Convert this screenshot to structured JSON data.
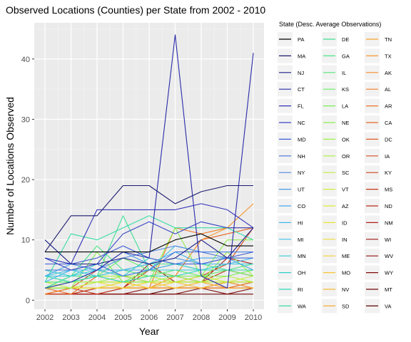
{
  "chart_data": {
    "type": "line",
    "title": "Observed Locations (Counties) per State from 2002 - 2010",
    "xlabel": "Year",
    "ylabel": "Number of Locations Observed",
    "legend_title": "State (Desc. Average Observations)",
    "legend_placement": "right",
    "grid": true,
    "xlim": [
      2002,
      2010
    ],
    "ylim": [
      0,
      45
    ],
    "x": [
      2002,
      2003,
      2004,
      2005,
      2006,
      2007,
      2008,
      2009,
      2010
    ],
    "x_ticks": [
      "2002",
      "2003",
      "2004",
      "2005",
      "2006",
      "2007",
      "2008",
      "2009",
      "2010"
    ],
    "y_ticks": [
      0,
      10,
      20,
      30,
      40
    ],
    "series": [
      {
        "name": "PA",
        "color": "#000000",
        "values": [
          8,
          8,
          8,
          8,
          8,
          10,
          11,
          9,
          9
        ]
      },
      {
        "name": "MA",
        "color": "#1a1a6e",
        "values": [
          8,
          14,
          14,
          19,
          19,
          16,
          18,
          19,
          19
        ]
      },
      {
        "name": "NJ",
        "color": "#1c1c8a",
        "values": [
          10,
          6,
          6,
          7,
          6,
          7,
          10,
          7,
          12
        ]
      },
      {
        "name": "CT",
        "color": "#2a2aa8",
        "values": [
          2,
          3,
          5,
          8,
          7,
          44,
          4,
          2,
          41
        ]
      },
      {
        "name": "FL",
        "color": "#3232b8",
        "values": [
          7,
          6,
          15,
          15,
          15,
          15,
          16,
          15,
          12
        ]
      },
      {
        "name": "NC",
        "color": "#3a45c4",
        "values": [
          7,
          5,
          6,
          11,
          13,
          11,
          13,
          12,
          12
        ]
      },
      {
        "name": "MD",
        "color": "#3d5ad4",
        "values": [
          6,
          6,
          7,
          9,
          7,
          6,
          6,
          7,
          8
        ]
      },
      {
        "name": "NH",
        "color": "#4a70dd",
        "values": [
          5,
          5,
          6,
          4,
          5,
          8,
          8,
          7,
          7
        ]
      },
      {
        "name": "NY",
        "color": "#5088e6",
        "values": [
          7,
          6,
          5,
          7,
          8,
          9,
          8,
          8,
          8
        ]
      },
      {
        "name": "UT",
        "color": "#4a9ae8",
        "values": [
          6,
          6,
          5,
          8,
          6,
          7,
          6,
          7,
          7
        ]
      },
      {
        "name": "CO",
        "color": "#45a8ee",
        "values": [
          4,
          6,
          5,
          5,
          5,
          6,
          7,
          7,
          5
        ]
      },
      {
        "name": "HI",
        "color": "#45b5ee",
        "values": [
          3,
          5,
          5,
          5,
          6,
          8,
          6,
          6,
          7
        ]
      },
      {
        "name": "MI",
        "color": "#3ec2e8",
        "values": [
          4,
          5,
          4,
          5,
          5,
          9,
          8,
          8,
          8
        ]
      },
      {
        "name": "MN",
        "color": "#35ccd8",
        "values": [
          4,
          4,
          5,
          4,
          5,
          5,
          5,
          6,
          6
        ]
      },
      {
        "name": "OH",
        "color": "#30d0c8",
        "values": [
          5,
          4,
          6,
          4,
          7,
          6,
          5,
          6,
          6
        ]
      },
      {
        "name": "RI",
        "color": "#32d6b8",
        "values": [
          4,
          3,
          4,
          3,
          4,
          4,
          5,
          5,
          5
        ]
      },
      {
        "name": "WA",
        "color": "#38dca6",
        "values": [
          3,
          11,
          10,
          12,
          14,
          12,
          12,
          12,
          10
        ]
      },
      {
        "name": "DE",
        "color": "#40e096",
        "values": [
          2,
          4,
          4,
          14,
          5,
          6,
          6,
          5,
          5
        ]
      },
      {
        "name": "GA",
        "color": "#4be585",
        "values": [
          2,
          4,
          9,
          5,
          6,
          6,
          5,
          5,
          6
        ]
      },
      {
        "name": "IL",
        "color": "#55e875",
        "values": [
          3,
          3,
          4,
          5,
          4,
          5,
          5,
          5,
          5
        ]
      },
      {
        "name": "KS",
        "color": "#65ec65",
        "values": [
          2,
          3,
          4,
          7,
          5,
          5,
          4,
          5,
          4
        ]
      },
      {
        "name": "LA",
        "color": "#78ee58",
        "values": [
          2,
          3,
          4,
          3,
          5,
          4,
          4,
          4,
          5
        ]
      },
      {
        "name": "NE",
        "color": "#8af04e",
        "values": [
          2,
          2,
          8,
          3,
          3,
          12,
          4,
          10,
          10
        ]
      },
      {
        "name": "OK",
        "color": "#9cf246",
        "values": [
          4,
          3,
          3,
          4,
          3,
          4,
          3,
          8,
          4
        ]
      },
      {
        "name": "OR",
        "color": "#aef03e",
        "values": [
          3,
          3,
          4,
          4,
          4,
          3,
          3,
          3,
          3
        ]
      },
      {
        "name": "SC",
        "color": "#bfee3a",
        "values": [
          3,
          2,
          3,
          3,
          4,
          3,
          3,
          4,
          3
        ]
      },
      {
        "name": "VT",
        "color": "#cfec38",
        "values": [
          2,
          3,
          3,
          3,
          3,
          3,
          4,
          3,
          4
        ]
      },
      {
        "name": "AZ",
        "color": "#ddea36",
        "values": [
          2,
          3,
          3,
          3,
          3,
          3,
          3,
          3,
          3
        ]
      },
      {
        "name": "ID",
        "color": "#e8e634",
        "values": [
          2,
          2,
          2,
          3,
          3,
          3,
          3,
          3,
          3
        ]
      },
      {
        "name": "IN",
        "color": "#f0de34",
        "values": [
          2,
          2,
          3,
          2,
          3,
          3,
          3,
          3,
          3
        ]
      },
      {
        "name": "ME",
        "color": "#f4d232",
        "values": [
          2,
          2,
          3,
          3,
          2,
          3,
          3,
          3,
          3
        ]
      },
      {
        "name": "MO",
        "color": "#f6c632",
        "values": [
          2,
          2,
          2,
          3,
          3,
          2,
          3,
          3,
          3
        ]
      },
      {
        "name": "NV",
        "color": "#f7ba32",
        "values": [
          2,
          2,
          2,
          2,
          3,
          3,
          2,
          3,
          3
        ]
      },
      {
        "name": "SD",
        "color": "#f8ae30",
        "values": [
          2,
          2,
          2,
          2,
          2,
          3,
          3,
          2,
          2
        ]
      },
      {
        "name": "TN",
        "color": "#f8a22e",
        "values": [
          2,
          2,
          2,
          3,
          2,
          2,
          2,
          3,
          2
        ]
      },
      {
        "name": "TX",
        "color": "#f8962c",
        "values": [
          2,
          2,
          2,
          2,
          2,
          4,
          10,
          12,
          16
        ]
      },
      {
        "name": "AK",
        "color": "#f68a2a",
        "values": [
          2,
          2,
          2,
          2,
          2,
          2,
          2,
          2,
          2
        ]
      },
      {
        "name": "AL",
        "color": "#f37e28",
        "values": [
          1,
          2,
          2,
          2,
          2,
          12,
          11,
          12,
          12
        ]
      },
      {
        "name": "AR",
        "color": "#ee7226",
        "values": [
          1,
          2,
          2,
          2,
          2,
          2,
          3,
          2,
          3
        ]
      },
      {
        "name": "CA",
        "color": "#e86624",
        "values": [
          2,
          1,
          4,
          3,
          2,
          4,
          10,
          11,
          12
        ]
      },
      {
        "name": "DC",
        "color": "#e05a22",
        "values": [
          1,
          2,
          2,
          2,
          2,
          2,
          2,
          2,
          2
        ]
      },
      {
        "name": "IA",
        "color": "#d84e20",
        "values": [
          2,
          2,
          5,
          4,
          3,
          3,
          4,
          6,
          12
        ]
      },
      {
        "name": "KY",
        "color": "#cf421e",
        "values": [
          1,
          1,
          2,
          2,
          2,
          2,
          2,
          2,
          3
        ]
      },
      {
        "name": "MS",
        "color": "#c5361c",
        "values": [
          1,
          2,
          1,
          2,
          5,
          4,
          3,
          5,
          4
        ]
      },
      {
        "name": "ND",
        "color": "#ba2b1a",
        "values": [
          1,
          1,
          2,
          2,
          2,
          2,
          2,
          2,
          2
        ]
      },
      {
        "name": "NM",
        "color": "#ae2018",
        "values": [
          1,
          1,
          1,
          2,
          2,
          2,
          2,
          3,
          2
        ]
      },
      {
        "name": "WI",
        "color": "#a01616",
        "values": [
          1,
          1,
          2,
          2,
          6,
          3,
          3,
          7,
          6
        ]
      },
      {
        "name": "WV",
        "color": "#901010",
        "values": [
          1,
          1,
          1,
          1,
          2,
          2,
          2,
          2,
          2
        ]
      },
      {
        "name": "WY",
        "color": "#800a0a",
        "values": [
          1,
          1,
          1,
          1,
          1,
          1,
          2,
          1,
          2
        ]
      },
      {
        "name": "MT",
        "color": "#700505",
        "values": [
          1,
          1,
          1,
          1,
          1,
          1,
          1,
          1,
          1
        ]
      },
      {
        "name": "VA",
        "color": "#5e0202",
        "values": [
          1,
          1,
          1,
          1,
          1,
          2,
          2,
          3,
          3
        ]
      }
    ]
  }
}
